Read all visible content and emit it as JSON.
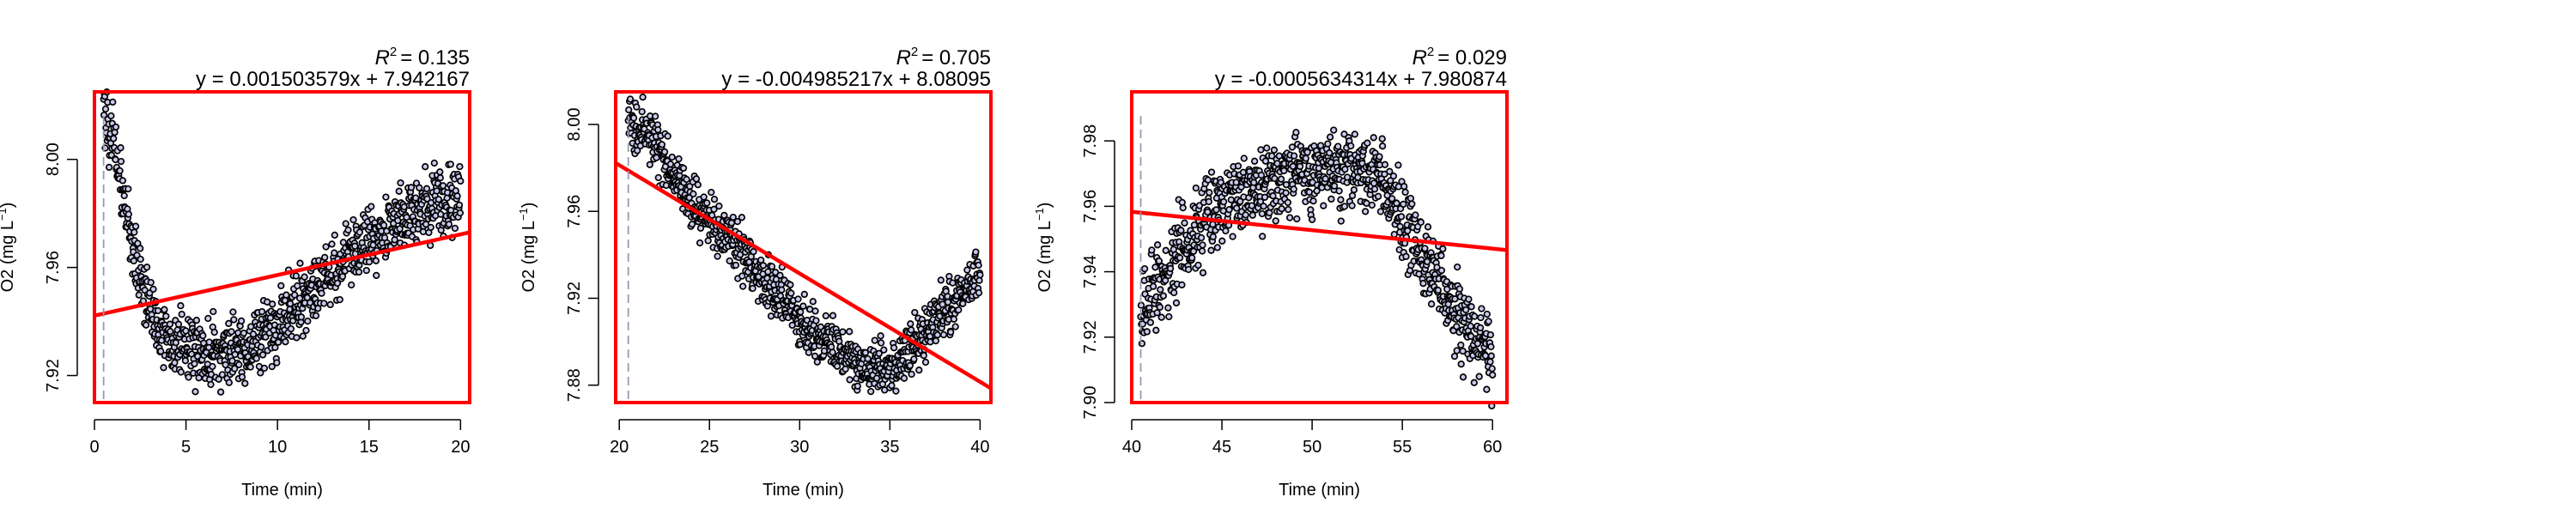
{
  "chart_data": [
    {
      "type": "scatter",
      "r2_value": "= 0.135",
      "equation": "y = 0.001503579x + 7.942167",
      "xlabel": "Time (min)",
      "ylabel": "O2 (mg L",
      "ylabel_sup": "−1",
      "ylabel_close": ")",
      "xlim": [
        0,
        20.5
      ],
      "ylim": [
        7.91,
        8.025
      ],
      "xticks": [
        0,
        5,
        10,
        15,
        20
      ],
      "yticks": [
        7.92,
        7.96,
        8.0
      ],
      "ytick_labels": [
        "7.92",
        "7.96",
        "8.00"
      ],
      "vline_x": 0.5,
      "regression": {
        "slope": 0.001503579,
        "intercept": 7.942167
      },
      "series": [
        {
          "x": [
            0.5,
            0.7,
            0.9,
            1.2,
            1.5,
            1.8,
            2.1,
            2.4,
            2.7,
            3.0,
            3.3,
            3.6,
            4.0,
            4.4,
            4.8,
            5.2,
            5.6,
            6.0,
            6.5,
            7.0,
            7.5,
            8.0,
            8.5,
            9.0,
            9.5,
            10.0,
            10.5,
            11.0,
            11.5,
            12.0,
            12.5,
            13.0,
            13.5,
            14.0,
            14.5,
            15.0,
            15.5,
            16.0,
            16.5,
            17.0,
            17.5,
            18.0,
            18.5,
            19.0,
            19.5,
            20.0
          ],
          "y": [
            8.02,
            8.015,
            8.01,
            8.0,
            7.99,
            7.978,
            7.968,
            7.96,
            7.952,
            7.946,
            7.941,
            7.937,
            7.934,
            7.932,
            7.931,
            7.93,
            7.929,
            7.929,
            7.928,
            7.928,
            7.929,
            7.93,
            7.932,
            7.934,
            7.937,
            7.94,
            7.943,
            7.946,
            7.95,
            7.953,
            7.956,
            7.959,
            7.962,
            7.965,
            7.967,
            7.97,
            7.972,
            7.975,
            7.977,
            7.979,
            7.981,
            7.983,
            7.984,
            7.985,
            7.985,
            7.985
          ]
        }
      ]
    },
    {
      "type": "scatter",
      "r2_value": "= 0.705",
      "equation": "y = -0.004985217x + 8.08095",
      "xlabel": "Time (min)",
      "ylabel": "O2 (mg L",
      "ylabel_sup": "−1",
      "ylabel_close": ")",
      "xlim": [
        19.8,
        40.6
      ],
      "ylim": [
        7.872,
        8.015
      ],
      "xticks": [
        20,
        25,
        30,
        35,
        40
      ],
      "yticks": [
        7.88,
        7.92,
        7.96,
        8.0
      ],
      "ytick_labels": [
        "7.88",
        "7.92",
        "7.96",
        "8.00"
      ],
      "vline_x": 20.5,
      "regression": {
        "slope": -0.004985217,
        "intercept": 8.08095
      },
      "series": [
        {
          "x": [
            20.5,
            21.0,
            21.5,
            22.0,
            22.5,
            23.0,
            23.5,
            24.0,
            24.5,
            25.0,
            25.5,
            26.0,
            26.5,
            27.0,
            27.5,
            28.0,
            28.5,
            29.0,
            29.5,
            30.0,
            30.5,
            31.0,
            31.5,
            32.0,
            32.5,
            33.0,
            33.5,
            34.0,
            34.5,
            35.0,
            35.5,
            36.0,
            36.5,
            37.0,
            37.5,
            38.0,
            38.5,
            39.0,
            39.5,
            40.0
          ],
          "y": [
            8.0,
            8.0,
            7.997,
            7.99,
            7.983,
            7.976,
            7.97,
            7.965,
            7.96,
            7.956,
            7.952,
            7.948,
            7.944,
            7.94,
            7.935,
            7.93,
            7.925,
            7.92,
            7.915,
            7.911,
            7.907,
            7.903,
            7.9,
            7.897,
            7.894,
            7.891,
            7.889,
            7.887,
            7.886,
            7.887,
            7.89,
            7.895,
            7.9,
            7.905,
            7.91,
            7.914,
            7.918,
            7.922,
            7.926,
            7.93
          ]
        }
      ]
    },
    {
      "type": "scatter",
      "r2_value": "= 0.029",
      "equation": "y = -0.0005634314x + 7.980874",
      "xlabel": "Time (min)",
      "ylabel": "O2 (mg L",
      "ylabel_sup": "−1",
      "ylabel_close": ")",
      "xlim": [
        40,
        60.8
      ],
      "ylim": [
        7.9,
        7.995
      ],
      "xticks": [
        40,
        45,
        50,
        55,
        60
      ],
      "yticks": [
        7.9,
        7.92,
        7.94,
        7.96,
        7.98
      ],
      "ytick_labels": [
        "7.90",
        "7.92",
        "7.94",
        "7.96",
        "7.98"
      ],
      "vline_x": 40.5,
      "regression": {
        "slope": -0.0005634314,
        "intercept": 7.980874
      },
      "series": [
        {
          "x": [
            40.5,
            41.0,
            41.5,
            42.0,
            42.5,
            43.0,
            43.5,
            44.0,
            44.5,
            45.0,
            45.5,
            46.0,
            46.5,
            47.0,
            47.5,
            48.0,
            48.5,
            49.0,
            49.5,
            50.0,
            50.5,
            51.0,
            51.5,
            52.0,
            52.5,
            53.0,
            53.5,
            54.0,
            54.5,
            55.0,
            55.5,
            56.0,
            56.5,
            57.0,
            57.5,
            58.0,
            58.5,
            59.0,
            59.5,
            60.0
          ],
          "y": [
            7.925,
            7.93,
            7.935,
            7.94,
            7.945,
            7.948,
            7.952,
            7.955,
            7.958,
            7.96,
            7.962,
            7.963,
            7.964,
            7.965,
            7.966,
            7.967,
            7.968,
            7.969,
            7.97,
            7.97,
            7.97,
            7.971,
            7.972,
            7.972,
            7.972,
            7.971,
            7.969,
            7.966,
            7.962,
            7.957,
            7.951,
            7.946,
            7.941,
            7.936,
            7.931,
            7.927,
            7.923,
            7.919,
            7.916,
            7.914
          ]
        }
      ]
    }
  ]
}
